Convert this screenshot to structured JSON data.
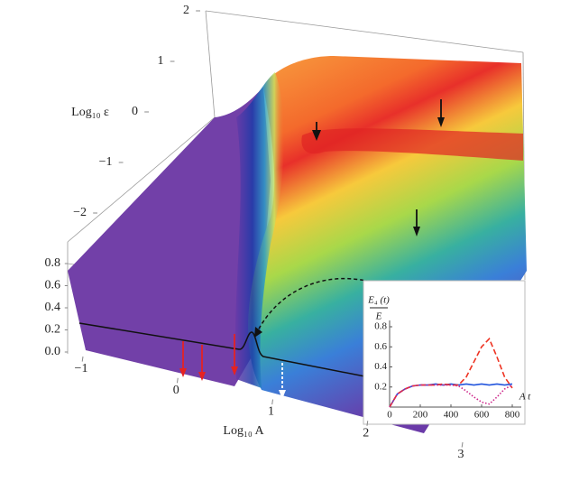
{
  "chart_data": [
    {
      "type": "surface",
      "xlabel": "Log₁₀ A",
      "ylabel": "Log₁₀ ε",
      "xlim": [
        -1,
        3
      ],
      "xticks": [
        {
          "value": -1,
          "label": "−1"
        },
        0,
        1,
        2,
        3
      ],
      "ylim": [
        -2,
        2
      ],
      "yticks": [
        {
          "value": -2,
          "label": "−2"
        },
        {
          "value": -1,
          "label": "−1"
        },
        0,
        1,
        2
      ],
      "zlim": [
        0,
        0.8
      ],
      "zticks": [
        {
          "value": 0,
          "label": "0.0"
        },
        0.2,
        0.4,
        0.6,
        0.8
      ]
    },
    {
      "type": "line",
      "ylabel_numerator": "E₄ (t)",
      "ylabel_denominator": "E",
      "xlabel": "A t",
      "xlim": [
        0,
        800
      ],
      "xticks": [
        0,
        200,
        400,
        600,
        800
      ],
      "ylim": [
        0,
        0.8
      ],
      "yticks": [
        0.2,
        0.4,
        0.6,
        0.8
      ],
      "x": [
        0,
        50,
        100,
        150,
        200,
        250,
        300,
        350,
        400,
        450,
        500,
        550,
        600,
        650,
        700,
        750,
        800
      ],
      "series": [
        {
          "color": "#2255dd",
          "style": "solid",
          "values": [
            0,
            0.13,
            0.18,
            0.21,
            0.22,
            0.22,
            0.23,
            0.22,
            0.23,
            0.22,
            0.23,
            0.22,
            0.23,
            0.22,
            0.23,
            0.22,
            0.23
          ]
        },
        {
          "color": "#ee3322",
          "style": "dashed",
          "values": [
            0,
            0.13,
            0.18,
            0.21,
            0.22,
            0.22,
            0.22,
            0.23,
            0.22,
            0.22,
            0.3,
            0.45,
            0.6,
            0.68,
            0.5,
            0.3,
            0.19
          ]
        },
        {
          "color": "#cc2288",
          "style": "dotted",
          "values": [
            0,
            0.13,
            0.18,
            0.21,
            0.22,
            0.22,
            0.22,
            0.22,
            0.22,
            0.21,
            0.16,
            0.1,
            0.05,
            0.03,
            0.1,
            0.18,
            0.22
          ]
        }
      ]
    }
  ]
}
